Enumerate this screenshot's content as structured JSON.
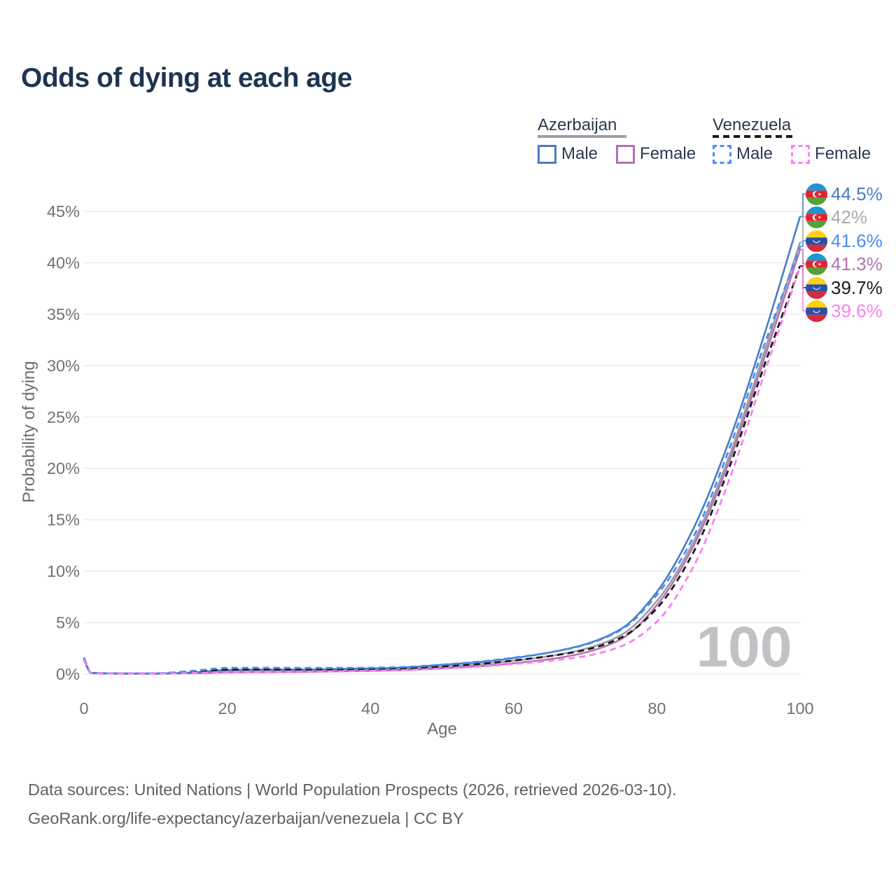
{
  "title": "Odds of dying at each age",
  "legend": {
    "groups": [
      {
        "label": "Azerbaijan",
        "line_style": "solid",
        "underline_color": "#9e9ea3",
        "items": [
          {
            "label": "Male",
            "color": "#4a7cc2"
          },
          {
            "label": "Female",
            "color": "#b273b2"
          }
        ]
      },
      {
        "label": "Venezuela",
        "line_style": "dashed",
        "underline_color": "#1b1b1b",
        "items": [
          {
            "label": "Male",
            "color": "#4d8df5"
          },
          {
            "label": "Female",
            "color": "#fa80f2"
          }
        ]
      }
    ]
  },
  "chart_data": {
    "type": "line",
    "title": "Odds of dying at each age",
    "xlabel": "Age",
    "ylabel": "Probability of dying",
    "xlim": [
      0,
      100
    ],
    "ylim": [
      0,
      47
    ],
    "xticks": [
      0,
      20,
      40,
      60,
      80,
      100
    ],
    "yticks": [
      0,
      5,
      10,
      15,
      20,
      25,
      30,
      35,
      40,
      45
    ],
    "ytick_suffix": "%",
    "grid": "horizontal-only",
    "legend_position": "top-right",
    "watermark": "100",
    "x": [
      0,
      1,
      5,
      10,
      15,
      20,
      25,
      30,
      35,
      40,
      45,
      50,
      55,
      60,
      65,
      70,
      75,
      80,
      85,
      90,
      95,
      100
    ],
    "series": [
      {
        "key": "az_both",
        "name": "Azerbaijan Both sexes",
        "color": "#9c9ca1",
        "dash": false,
        "values": [
          1.4,
          0.1,
          0.05,
          0.05,
          0.12,
          0.3,
          0.33,
          0.34,
          0.38,
          0.42,
          0.52,
          0.72,
          0.95,
          1.3,
          1.75,
          2.45,
          3.8,
          7.1,
          12.7,
          21.0,
          31.3,
          42.0
        ]
      },
      {
        "key": "az_female",
        "name": "Azerbaijan Female",
        "color": "#b273b2",
        "dash": false,
        "values": [
          1.3,
          0.09,
          0.04,
          0.04,
          0.08,
          0.16,
          0.19,
          0.21,
          0.26,
          0.31,
          0.4,
          0.56,
          0.76,
          1.05,
          1.45,
          2.1,
          3.4,
          6.7,
          12.3,
          20.5,
          30.7,
          41.3
        ]
      },
      {
        "key": "az_male",
        "name": "Azerbaijan Male",
        "color": "#4a7cc2",
        "dash": false,
        "values": [
          1.5,
          0.12,
          0.06,
          0.06,
          0.15,
          0.4,
          0.45,
          0.45,
          0.5,
          0.55,
          0.65,
          0.9,
          1.15,
          1.55,
          2.1,
          2.9,
          4.4,
          8.0,
          14.0,
          22.5,
          33.0,
          44.5
        ]
      },
      {
        "key": "ve_both",
        "name": "Venezuela Both sexes",
        "color": "#1b1b1b",
        "dash": true,
        "values": [
          1.5,
          0.11,
          0.06,
          0.06,
          0.2,
          0.42,
          0.44,
          0.43,
          0.44,
          0.47,
          0.55,
          0.74,
          0.97,
          1.32,
          1.75,
          2.35,
          3.55,
          6.4,
          11.7,
          19.9,
          30.0,
          39.7
        ]
      },
      {
        "key": "ve_male",
        "name": "Venezuela Male",
        "color": "#4d8df5",
        "dash": true,
        "values": [
          1.6,
          0.13,
          0.07,
          0.08,
          0.3,
          0.6,
          0.62,
          0.6,
          0.6,
          0.62,
          0.7,
          0.92,
          1.2,
          1.6,
          2.1,
          2.85,
          4.3,
          7.7,
          13.2,
          21.7,
          32.0,
          41.6
        ]
      },
      {
        "key": "ve_female",
        "name": "Venezuela Female",
        "color": "#fa80f2",
        "dash": true,
        "values": [
          1.4,
          0.1,
          0.05,
          0.05,
          0.1,
          0.21,
          0.23,
          0.25,
          0.28,
          0.32,
          0.4,
          0.54,
          0.72,
          0.98,
          1.3,
          1.75,
          2.7,
          5.1,
          10.3,
          18.7,
          29.2,
          39.6
        ]
      }
    ],
    "end_labels": [
      {
        "flag": "azerbaijan",
        "series_key": "az_male",
        "value": "44.5%",
        "color": "#4a7cc2"
      },
      {
        "flag": "azerbaijan",
        "series_key": "az_both",
        "value": "42%",
        "color": "#ababaf"
      },
      {
        "flag": "venezuela",
        "series_key": "ve_male",
        "value": "41.6%",
        "color": "#4d8df5"
      },
      {
        "flag": "azerbaijan",
        "series_key": "az_female",
        "value": "41.3%",
        "color": "#b273b2"
      },
      {
        "flag": "venezuela",
        "series_key": "ve_both",
        "value": "39.7%",
        "color": "#1b1b1b"
      },
      {
        "flag": "venezuela",
        "series_key": "ve_female",
        "value": "39.6%",
        "color": "#fa80f2"
      }
    ]
  },
  "footer": {
    "line1": "Data sources: United Nations | World Population Prospects (2026, retrieved 2026-03-10).",
    "line2": "GeoRank.org/life-expectancy/azerbaijan/venezuela | CC BY"
  }
}
